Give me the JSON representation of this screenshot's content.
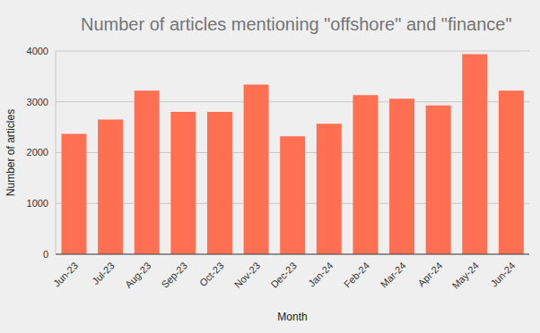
{
  "chart_data": {
    "type": "bar",
    "title": "Number of articles mentioning \"offshore\" and \"finance\"",
    "x_label": "Month",
    "y_label": "Number of articles",
    "categories": [
      "Jun-23",
      "Jul-23",
      "Aug-23",
      "Sep-23",
      "Oct-23",
      "Nov-23",
      "Dec-23",
      "Jan-24",
      "Feb-24",
      "Mar-24",
      "Apr-24",
      "May-24",
      "Jun-24"
    ],
    "values": [
      2370,
      2650,
      3220,
      2800,
      2800,
      3340,
      2320,
      2570,
      3130,
      3060,
      2930,
      3940,
      3220
    ],
    "color": "#ff7052",
    "ylim": [
      0,
      4000
    ],
    "yticks": [
      0,
      1000,
      2000,
      3000,
      4000
    ],
    "grid": true
  }
}
